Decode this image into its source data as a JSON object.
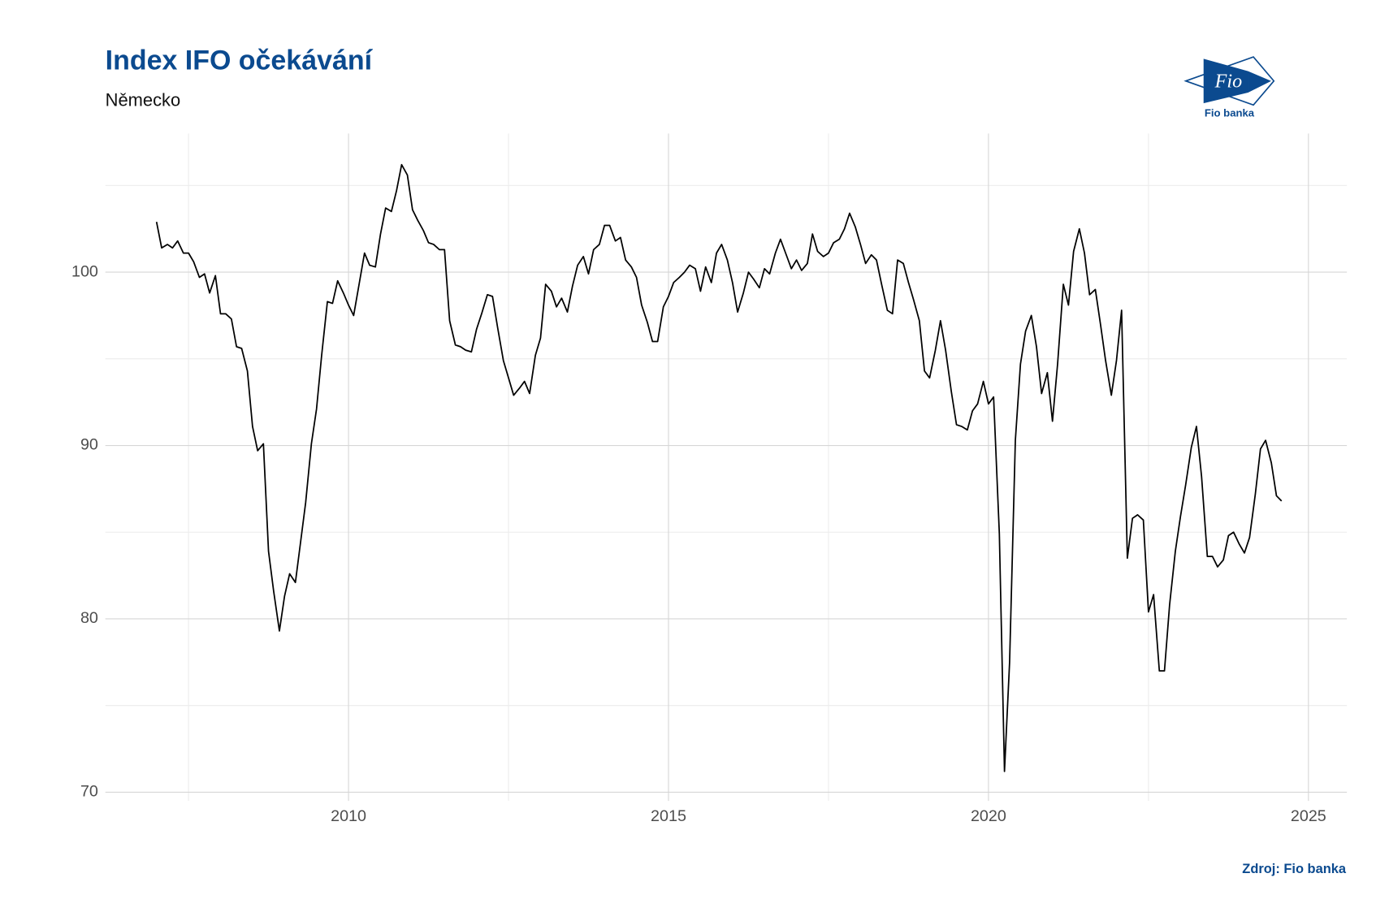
{
  "chart_data": {
    "type": "line",
    "title": "Index IFO očekávání",
    "subtitle": "Německo",
    "source": "Zdroj: Fio banka",
    "logo": {
      "mark": "Fio",
      "caption": "Fio banka"
    },
    "xlim": [
      2006.2,
      2025.6
    ],
    "ylim": [
      69.5,
      108
    ],
    "xticks": [
      2010,
      2015,
      2020,
      2025
    ],
    "yticks": [
      70,
      80,
      90,
      100
    ],
    "xminor": [
      2007.5,
      2012.5,
      2017.5,
      2022.5
    ],
    "yminor": [
      75,
      85,
      95,
      105
    ],
    "grid": true,
    "x": [
      2007,
      2007.08,
      2007.17,
      2007.25,
      2007.33,
      2007.42,
      2007.5,
      2007.58,
      2007.67,
      2007.75,
      2007.83,
      2007.92,
      2008,
      2008.08,
      2008.17,
      2008.25,
      2008.33,
      2008.42,
      2008.5,
      2008.58,
      2008.67,
      2008.75,
      2008.83,
      2008.92,
      2009,
      2009.08,
      2009.17,
      2009.25,
      2009.33,
      2009.42,
      2009.5,
      2009.58,
      2009.67,
      2009.75,
      2009.83,
      2009.92,
      2010,
      2010.08,
      2010.17,
      2010.25,
      2010.33,
      2010.42,
      2010.5,
      2010.58,
      2010.67,
      2010.75,
      2010.83,
      2010.92,
      2011,
      2011.08,
      2011.17,
      2011.25,
      2011.33,
      2011.42,
      2011.5,
      2011.58,
      2011.67,
      2011.75,
      2011.83,
      2011.92,
      2012,
      2012.08,
      2012.17,
      2012.25,
      2012.33,
      2012.42,
      2012.5,
      2012.58,
      2012.67,
      2012.75,
      2012.83,
      2012.92,
      2013,
      2013.08,
      2013.17,
      2013.25,
      2013.33,
      2013.42,
      2013.5,
      2013.58,
      2013.67,
      2013.75,
      2013.83,
      2013.92,
      2014,
      2014.08,
      2014.17,
      2014.25,
      2014.33,
      2014.42,
      2014.5,
      2014.58,
      2014.67,
      2014.75,
      2014.83,
      2014.92,
      2015,
      2015.08,
      2015.17,
      2015.25,
      2015.33,
      2015.42,
      2015.5,
      2015.58,
      2015.67,
      2015.75,
      2015.83,
      2015.92,
      2016,
      2016.08,
      2016.17,
      2016.25,
      2016.33,
      2016.42,
      2016.5,
      2016.58,
      2016.67,
      2016.75,
      2016.83,
      2016.92,
      2017,
      2017.08,
      2017.17,
      2017.25,
      2017.33,
      2017.42,
      2017.5,
      2017.58,
      2017.67,
      2017.75,
      2017.83,
      2017.92,
      2018,
      2018.08,
      2018.17,
      2018.25,
      2018.33,
      2018.42,
      2018.5,
      2018.58,
      2018.67,
      2018.75,
      2018.83,
      2018.92,
      2019,
      2019.08,
      2019.17,
      2019.25,
      2019.33,
      2019.42,
      2019.5,
      2019.58,
      2019.67,
      2019.75,
      2019.83,
      2019.92,
      2020,
      2020.08,
      2020.17,
      2020.25,
      2020.33,
      2020.42,
      2020.5,
      2020.58,
      2020.67,
      2020.75,
      2020.83,
      2020.92,
      2021,
      2021.08,
      2021.17,
      2021.25,
      2021.33,
      2021.42,
      2021.5,
      2021.58,
      2021.67,
      2021.75,
      2021.83,
      2021.92,
      2022,
      2022.08,
      2022.17,
      2022.25,
      2022.33,
      2022.42,
      2022.5,
      2022.58,
      2022.67,
      2022.75,
      2022.83,
      2022.92,
      2023,
      2023.08,
      2023.17,
      2023.25,
      2023.33,
      2023.42,
      2023.5,
      2023.58,
      2023.67,
      2023.75,
      2023.83,
      2023.92,
      2024,
      2024.08,
      2024.17,
      2024.25,
      2024.33,
      2024.42,
      2024.5,
      2024.58
    ],
    "series": [
      {
        "color": "#000000",
        "values": [
          102.9,
          101.4,
          101.6,
          101.4,
          101.8,
          101.1,
          101.1,
          100.6,
          99.7,
          99.9,
          98.8,
          99.8,
          97.6,
          97.6,
          97.3,
          95.7,
          95.6,
          94.3,
          91.1,
          89.7,
          90.1,
          83.9,
          81.6,
          79.3,
          81.3,
          82.6,
          82.1,
          84.4,
          86.7,
          90.1,
          92.1,
          95.2,
          98.3,
          98.2,
          99.5,
          98.8,
          98.1,
          97.5,
          99.4,
          101.1,
          100.4,
          100.3,
          102.2,
          103.7,
          103.5,
          104.7,
          106.2,
          105.6,
          103.6,
          103.0,
          102.4,
          101.7,
          101.6,
          101.3,
          101.3,
          97.2,
          95.8,
          95.7,
          95.5,
          95.4,
          96.7,
          97.6,
          98.7,
          98.6,
          96.8,
          94.9,
          93.9,
          92.9,
          93.3,
          93.7,
          93.0,
          95.2,
          96.2,
          99.3,
          98.9,
          98.0,
          98.5,
          97.7,
          99.2,
          100.4,
          100.9,
          99.9,
          101.3,
          101.6,
          102.7,
          102.7,
          101.8,
          102.0,
          100.7,
          100.3,
          99.7,
          98.1,
          97.1,
          96.0,
          96.0,
          98.0,
          98.6,
          99.4,
          99.7,
          100.0,
          100.4,
          100.2,
          98.9,
          100.3,
          99.4,
          101.1,
          101.6,
          100.7,
          99.4,
          97.7,
          98.8,
          100.0,
          99.6,
          99.1,
          100.2,
          99.9,
          101.1,
          101.9,
          101.1,
          100.2,
          100.7,
          100.1,
          100.5,
          102.2,
          101.2,
          100.9,
          101.1,
          101.7,
          101.9,
          102.5,
          103.4,
          102.6,
          101.6,
          100.5,
          101.0,
          100.7,
          99.3,
          97.8,
          97.6,
          100.7,
          100.5,
          99.4,
          98.4,
          97.2,
          94.3,
          93.9,
          95.5,
          97.2,
          95.5,
          93.1,
          91.2,
          91.1,
          90.9,
          92.0,
          92.4,
          93.7,
          92.4,
          92.8,
          84.9,
          71.2,
          77.5,
          90.3,
          94.7,
          96.6,
          97.5,
          95.7,
          93.0,
          94.2,
          91.4,
          94.7,
          99.3,
          98.1,
          101.2,
          102.5,
          101.1,
          98.7,
          99.0,
          97.0,
          94.9,
          92.9,
          94.9,
          97.8,
          83.5,
          85.8,
          86.0,
          85.7,
          80.4,
          81.4,
          77.0,
          77.0,
          80.8,
          83.9,
          85.9,
          87.7,
          89.9,
          91.1,
          88.2,
          83.6,
          83.6,
          83.0,
          83.4,
          84.8,
          85.0,
          84.3,
          83.8,
          84.7,
          87.2,
          89.8,
          90.3,
          89.0,
          87.1,
          86.8
        ]
      }
    ]
  }
}
